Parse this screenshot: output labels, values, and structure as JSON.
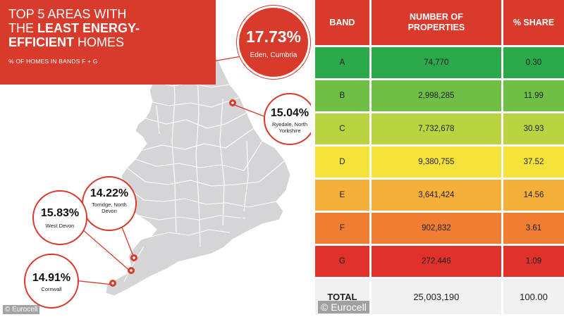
{
  "infographic": {
    "title_line1": "TOP 5 AREAS WITH",
    "title_line2_pre": "THE ",
    "title_line2_bold": "LEAST ENERGY-",
    "title_line3_bold": "EFFICIENT",
    "title_line3_post": " HOMES",
    "subtitle": "% OF HOMES IN BANDS F + G",
    "areas": [
      {
        "pct": "17.73%",
        "name": "Eden, Cumbria"
      },
      {
        "pct": "15.04%",
        "name": "Ryedale, North Yorkshire"
      },
      {
        "pct": "14.22%",
        "name": "Torridge, North Devon"
      },
      {
        "pct": "15.83%",
        "name": "West Devon"
      },
      {
        "pct": "14.91%",
        "name": "Cornwall"
      }
    ],
    "credit": "© Eurocell",
    "accent_color": "#d83a2b",
    "map_color": "#d5d5d8"
  },
  "table": {
    "headers": [
      "BAND",
      "NUMBER OF PROPERTIES",
      "% SHARE"
    ],
    "rows": [
      {
        "band": "A",
        "count": "74,770",
        "share": "0.30",
        "color": "#2aa84a"
      },
      {
        "band": "B",
        "count": "2,998,285",
        "share": "11.99",
        "color": "#6fbe45"
      },
      {
        "band": "C",
        "count": "7,732,678",
        "share": "30.93",
        "color": "#b9d440"
      },
      {
        "band": "D",
        "count": "9,380,755",
        "share": "37.52",
        "color": "#f5e23a"
      },
      {
        "band": "E",
        "count": "3,641,424",
        "share": "14.56",
        "color": "#f5b03c"
      },
      {
        "band": "F",
        "count": "902,832",
        "share": "3.61",
        "color": "#ef7d32"
      },
      {
        "band": "G",
        "count": "272,446",
        "share": "1.09",
        "color": "#e0312b"
      }
    ],
    "total_label": "TOTAL",
    "total_count": "25,003,190",
    "total_share": "100.00",
    "credit": "© Eurocell"
  }
}
